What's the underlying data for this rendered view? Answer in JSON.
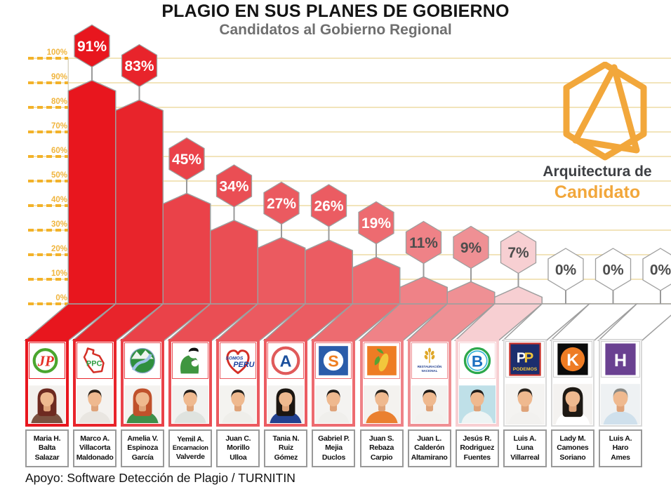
{
  "title": "PLAGIO EN SUS PLANES DE GOBIERNO",
  "subtitle": "Candidatos al Gobierno Regional",
  "footer": "Apoyo: Software Detección de Plagio / TURNITIN",
  "brand": {
    "line1": "Arquitectura de",
    "line2": "Candidato",
    "accent": "#F2A73B",
    "text_color": "#3E4044"
  },
  "axis": {
    "tick_labels": [
      "0%",
      "10%",
      "20%",
      "30%",
      "40%",
      "50%",
      "60%",
      "70%",
      "80%",
      "90%",
      "100%"
    ],
    "tick_color": "#F0B53E",
    "dash_color": "#F3B229",
    "gridline_color": "#F2E4BB"
  },
  "styles": {
    "outline": "#9E9E9E",
    "badge_text_light": "#FFFFFF",
    "badge_text_dark": "#4D4D4D",
    "card_border_zero": "#D9D9D9"
  },
  "chart_data": {
    "type": "bar",
    "title": "PLAGIO EN SUS PLANES DE GOBIERNO",
    "subtitle": "Candidatos al Gobierno Regional",
    "xlabel": "",
    "ylabel": "",
    "unit": "%",
    "ylim": [
      0,
      100
    ],
    "yticks": [
      0,
      10,
      20,
      30,
      40,
      50,
      60,
      70,
      80,
      90,
      100
    ],
    "grid": true,
    "legend": "none",
    "categories": [
      "Maria H. Balta Salazar",
      "Marco A. Villacorta Maldonado",
      "Amelia V. Espinoza García",
      "Yemil A. Encarnacion Valverde",
      "Juan C. Morillo Ulloa",
      "Tania N. Ruiz Gómez",
      "Gabriel P. Mejia Duclos",
      "Juan S. Rebaza Carpio",
      "Juan L. Calderón Altamirano",
      "Jesús R. Rodriguez Fuentes",
      "Luis A. Luna Villarreal",
      "Lady M. Camones Soriano",
      "Luis A. Haro Ames"
    ],
    "values": [
      91,
      83,
      45,
      34,
      27,
      26,
      19,
      11,
      9,
      7,
      0,
      0,
      0
    ],
    "value_labels": [
      "91%",
      "83%",
      "45%",
      "34%",
      "27%",
      "26%",
      "19%",
      "11%",
      "9%",
      "7%",
      "0%",
      "0%",
      "0%"
    ],
    "bar_colors": [
      "#E8161E",
      "#E8242B",
      "#EA4249",
      "#EA4E54",
      "#EB5A60",
      "#EB5C62",
      "#ED6B70",
      "#EF8287",
      "#EF9094",
      "#F7CFD2",
      "#FFFFFF",
      "#FFFFFF",
      "#FFFFFF"
    ]
  },
  "candidates": [
    {
      "name_lines": [
        "Maria H.",
        "Balta",
        "Salazar"
      ],
      "party": {
        "type": "jp",
        "labels": [
          "JP"
        ]
      },
      "avatar": {
        "hair": "#6e2a20",
        "shirt": "#7a5140",
        "long_hair": true,
        "bg": "#f3f1ee"
      }
    },
    {
      "name_lines": [
        "Marco A.",
        "Villacorta",
        "Maldonado"
      ],
      "party": {
        "type": "ppc",
        "labels": [
          "PPC"
        ]
      },
      "avatar": {
        "hair": "#2b2118",
        "shirt": "#e9e6e1",
        "long_hair": false,
        "bg": "#f4f2ef"
      }
    },
    {
      "name_lines": [
        "Amelia V.",
        "Espinoza",
        "García"
      ],
      "party": {
        "type": "mountain",
        "labels": []
      },
      "avatar": {
        "hair": "#c0512b",
        "shirt": "#3f8f4a",
        "long_hair": true,
        "bg": "#f4f2ef"
      }
    },
    {
      "name_lines": [
        "Yemil A.",
        "Encarnacion",
        "Valverde"
      ],
      "party": {
        "type": "person",
        "labels": []
      },
      "avatar": {
        "hair": "#1f1b18",
        "shirt": "#dfe3df",
        "long_hair": false,
        "bg": "#f2f2f0"
      }
    },
    {
      "name_lines": [
        "Juan C.",
        "Morillo",
        "Ulloa"
      ],
      "party": {
        "type": "somos",
        "labels": [
          "SOMOS",
          "PERU"
        ]
      },
      "avatar": {
        "hair": "#23201c",
        "shirt": "#efeeea",
        "long_hair": false,
        "bg": "#f4f3f0"
      }
    },
    {
      "name_lines": [
        "Tania N.",
        "Ruiz",
        "Gómez"
      ],
      "party": {
        "type": "a-circle",
        "labels": [
          "A"
        ]
      },
      "avatar": {
        "hair": "#1c1611",
        "shirt": "#23418f",
        "long_hair": true,
        "bg": "#f3f2f0"
      }
    },
    {
      "name_lines": [
        "Gabriel P.",
        "Mejia",
        "Duclos"
      ],
      "party": {
        "type": "s-square",
        "labels": [
          "S"
        ]
      },
      "avatar": {
        "hair": "#211c18",
        "shirt": "#f0efec",
        "long_hair": false,
        "bg": "#f4f3f1"
      }
    },
    {
      "name_lines": [
        "Juan S.",
        "Rebaza",
        "Carpio"
      ],
      "party": {
        "type": "corn",
        "labels": []
      },
      "avatar": {
        "hair": "#26211c",
        "shirt": "#ea8030",
        "long_hair": false,
        "bg": "#f4f2ef"
      }
    },
    {
      "name_lines": [
        "Juan L.",
        "Calderón",
        "Altamirano"
      ],
      "party": {
        "type": "restauracion",
        "labels": [
          "RESTAURACIÓN",
          "NACIONAL"
        ]
      },
      "avatar": {
        "hair": "#1e1a16",
        "shirt": "#f2f1ee",
        "long_hair": false,
        "bg": "#f3f2f0"
      }
    },
    {
      "name_lines": [
        "Jesús R.",
        "Rodriguez",
        "Fuentes"
      ],
      "party": {
        "type": "b-circle",
        "labels": [
          "B"
        ]
      },
      "avatar": {
        "hair": "#211d19",
        "shirt": "#eef4f4",
        "long_hair": false,
        "bg": "#bfe0e8"
      }
    },
    {
      "name_lines": [
        "Luis A.",
        "Luna",
        "Villarreal"
      ],
      "party": {
        "type": "podemos",
        "labels": [
          "P",
          "P",
          "PODEMOS"
        ]
      },
      "avatar": {
        "hair": "#2a241e",
        "shirt": "#f2f1ef",
        "long_hair": false,
        "bg": "#f4f3f1"
      }
    },
    {
      "name_lines": [
        "Lady M.",
        "Camones",
        "Soriano"
      ],
      "party": {
        "type": "k-circle",
        "labels": [
          "K"
        ]
      },
      "avatar": {
        "hair": "#1d1813",
        "shirt": "#ffffff",
        "long_hair": true,
        "bg": "#f4f2f0"
      }
    },
    {
      "name_lines": [
        "Luis A.",
        "Haro",
        "Ames"
      ],
      "party": {
        "type": "h-square",
        "labels": [
          "H"
        ]
      },
      "avatar": {
        "hair": "#8a8a86",
        "shirt": "#cfe0ec",
        "long_hair": false,
        "bg": "#eef1f3"
      }
    }
  ]
}
